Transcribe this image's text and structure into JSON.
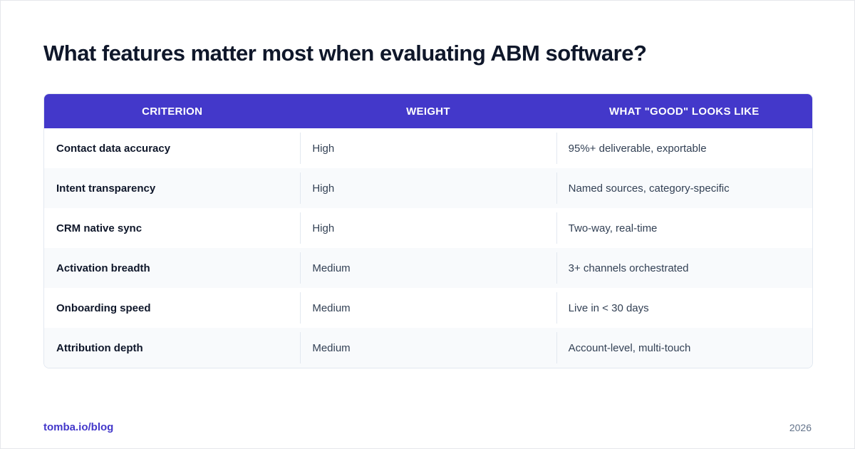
{
  "title": "What features matter most when evaluating ABM software?",
  "table": {
    "headers": [
      "CRITERION",
      "WEIGHT",
      "WHAT \"GOOD\" LOOKS LIKE"
    ],
    "rows": [
      [
        "Contact data accuracy",
        "High",
        "95%+ deliverable, exportable"
      ],
      [
        "Intent transparency",
        "High",
        "Named sources, category-specific"
      ],
      [
        "CRM native sync",
        "High",
        "Two-way, real-time"
      ],
      [
        "Activation breadth",
        "Medium",
        "3+ channels orchestrated"
      ],
      [
        "Onboarding speed",
        "Medium",
        "Live in < 30 days"
      ],
      [
        "Attribution depth",
        "Medium",
        "Account-level, multi-touch"
      ]
    ]
  },
  "footer": {
    "link": "tomba.io/blog",
    "year": "2026"
  },
  "colors": {
    "header_bg": "#4338ca",
    "title": "#0f172a",
    "row_alt": "#f8fafc"
  }
}
